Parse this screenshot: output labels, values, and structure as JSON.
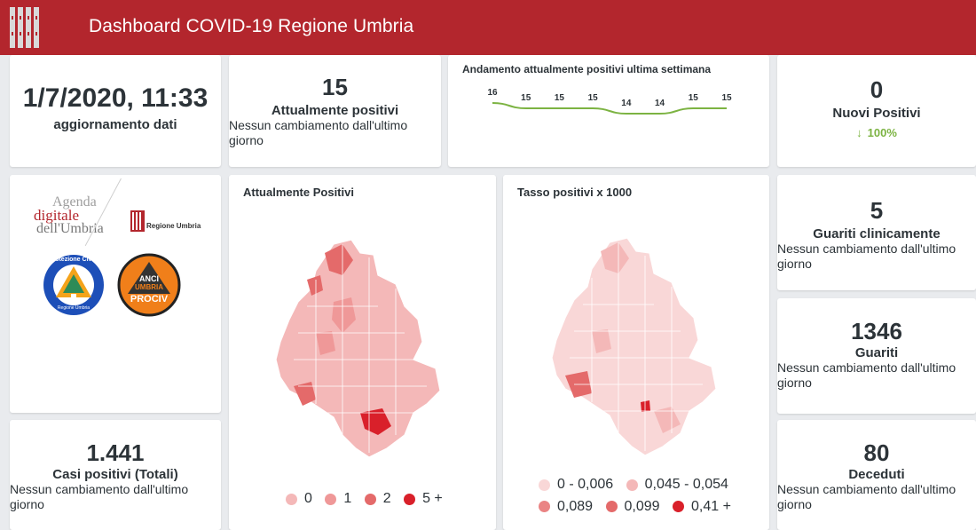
{
  "header": {
    "title": "Dashboard COVID-19 Regione Umbria"
  },
  "update": {
    "datetime": "1/7/2020, 11:33",
    "label": "aggiornamento dati"
  },
  "positives_now": {
    "value": "15",
    "label": "Attualmente positivi",
    "note": "Nessun cambiamento dall'ultimo giorno"
  },
  "trend": {
    "title": "Andamento attualmente positivi ultima settimana",
    "chart_data": {
      "type": "line",
      "values": [
        16,
        15,
        15,
        15,
        14,
        14,
        15,
        15
      ],
      "labels": [
        "16",
        "15",
        "15",
        "15",
        "14",
        "14",
        "15",
        "15"
      ],
      "color": "#7cb342"
    }
  },
  "new_positives": {
    "value": "0",
    "label": "Nuovi Positivi",
    "change": "100%"
  },
  "logos": {
    "agenda": [
      "Agenda",
      "digitale",
      "dell'Umbria"
    ],
    "regione": "Regione Umbria",
    "protezione": "Protezione Civile",
    "protezione_sub": "Regione Umbria",
    "anci": [
      "ANCI",
      "UMBRIA",
      "PROCIV"
    ]
  },
  "map_positives": {
    "title": "Attualmente Positivi",
    "legend": [
      {
        "label": "0",
        "color": "#f4b8b8"
      },
      {
        "label": "1",
        "color": "#ef9898"
      },
      {
        "label": "2",
        "color": "#e46a6a"
      },
      {
        "label": "5 +",
        "color": "#d9202a"
      }
    ]
  },
  "map_rate": {
    "title": "Tasso positivi x 1000",
    "legend": [
      {
        "label": "0 - 0,006",
        "color": "#f9d7d7"
      },
      {
        "label": "0,045 - 0,054",
        "color": "#f4b8b8"
      },
      {
        "label": "0,089",
        "color": "#ea8484"
      },
      {
        "label": "0,099",
        "color": "#e46a6a"
      },
      {
        "label": "0,41 +",
        "color": "#d9202a"
      }
    ]
  },
  "healed_clinical": {
    "value": "5",
    "label": "Guariti clinicamente",
    "note": "Nessun cambiamento dall'ultimo giorno"
  },
  "healed": {
    "value": "1346",
    "label": "Guariti",
    "note": "Nessun cambiamento dall'ultimo giorno"
  },
  "total_cases": {
    "value": "1.441",
    "label": "Casi positivi (Totali)",
    "note": "Nessun cambiamento dall'ultimo giorno"
  },
  "deaths": {
    "value": "80",
    "label": "Deceduti",
    "note": "Nessun cambiamento dall'ultimo giorno"
  },
  "colors": {
    "brand": "#b3262d",
    "positive_trend": "#7cb342"
  }
}
